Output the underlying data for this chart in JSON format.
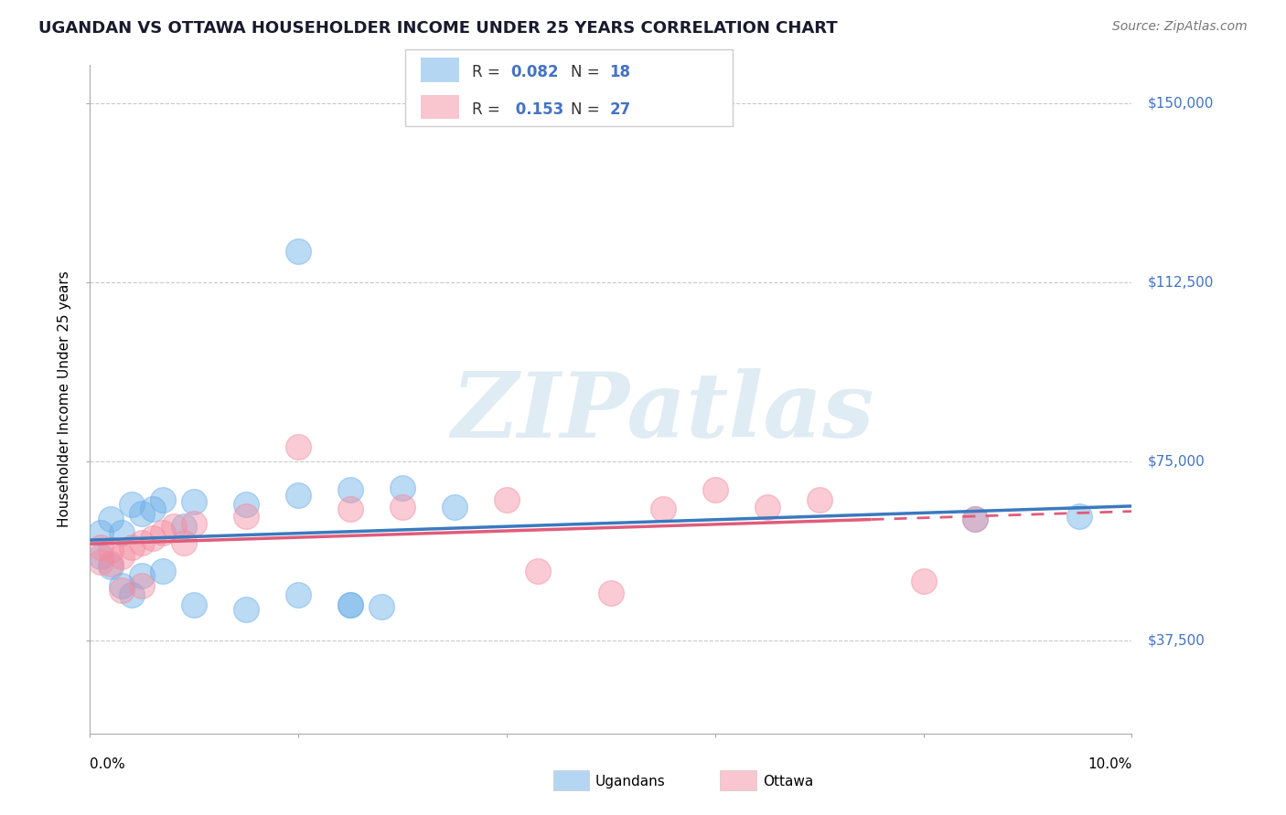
{
  "title": "UGANDAN VS OTTAWA HOUSEHOLDER INCOME UNDER 25 YEARS CORRELATION CHART",
  "source": "Source: ZipAtlas.com",
  "ylabel": "Householder Income Under 25 years",
  "xmin": 0.0,
  "xmax": 0.1,
  "ymin": 18000,
  "ymax": 158000,
  "ytick_vals": [
    37500,
    75000,
    112500,
    150000
  ],
  "ytick_labels": [
    "$37,500",
    "$75,000",
    "$112,500",
    "$150,000"
  ],
  "ugandan_line_color": "#3a7abf",
  "ottawa_line_color": "#e05c7a",
  "scatter_alpha": 0.45,
  "ugandan_scatter_color": "#6aaee8",
  "ottawa_scatter_color": "#f48ca0",
  "watermark_color": "#d4e4f0",
  "background_color": "#ffffff",
  "grid_color": "#bbbbbb",
  "title_color": "#1a1a2e",
  "source_color": "#777777",
  "ytick_color": "#4472c4",
  "legend_text_color": "#333333",
  "legend_val_color": "#4472c4",
  "ugandan_x": [
    0.001,
    0.002,
    0.003,
    0.004,
    0.005,
    0.006,
    0.007,
    0.009,
    0.01,
    0.015,
    0.02,
    0.025,
    0.03,
    0.035,
    0.085,
    0.095,
    0.001,
    0.002,
    0.003,
    0.004,
    0.005,
    0.007,
    0.01,
    0.015,
    0.02,
    0.025,
    0.028,
    0.02,
    0.025
  ],
  "ugandan_y": [
    60000,
    63000,
    60000,
    66000,
    64000,
    65000,
    67000,
    61500,
    66500,
    66000,
    68000,
    69000,
    69500,
    65500,
    63000,
    63500,
    55000,
    53000,
    49000,
    47000,
    51000,
    52000,
    45000,
    44000,
    47000,
    45000,
    44500,
    119000,
    45000
  ],
  "ottawa_x": [
    0.001,
    0.002,
    0.003,
    0.004,
    0.005,
    0.006,
    0.007,
    0.008,
    0.009,
    0.01,
    0.015,
    0.02,
    0.025,
    0.03,
    0.04,
    0.043,
    0.05,
    0.055,
    0.06,
    0.065,
    0.07,
    0.08,
    0.085,
    0.001,
    0.002,
    0.003,
    0.005
  ],
  "ottawa_y": [
    57000,
    56500,
    55000,
    57000,
    58000,
    59000,
    60000,
    61500,
    58000,
    62000,
    63500,
    78000,
    65000,
    65500,
    67000,
    52000,
    47500,
    65000,
    69000,
    65500,
    67000,
    50000,
    63000,
    54000,
    53500,
    48000,
    49000
  ]
}
